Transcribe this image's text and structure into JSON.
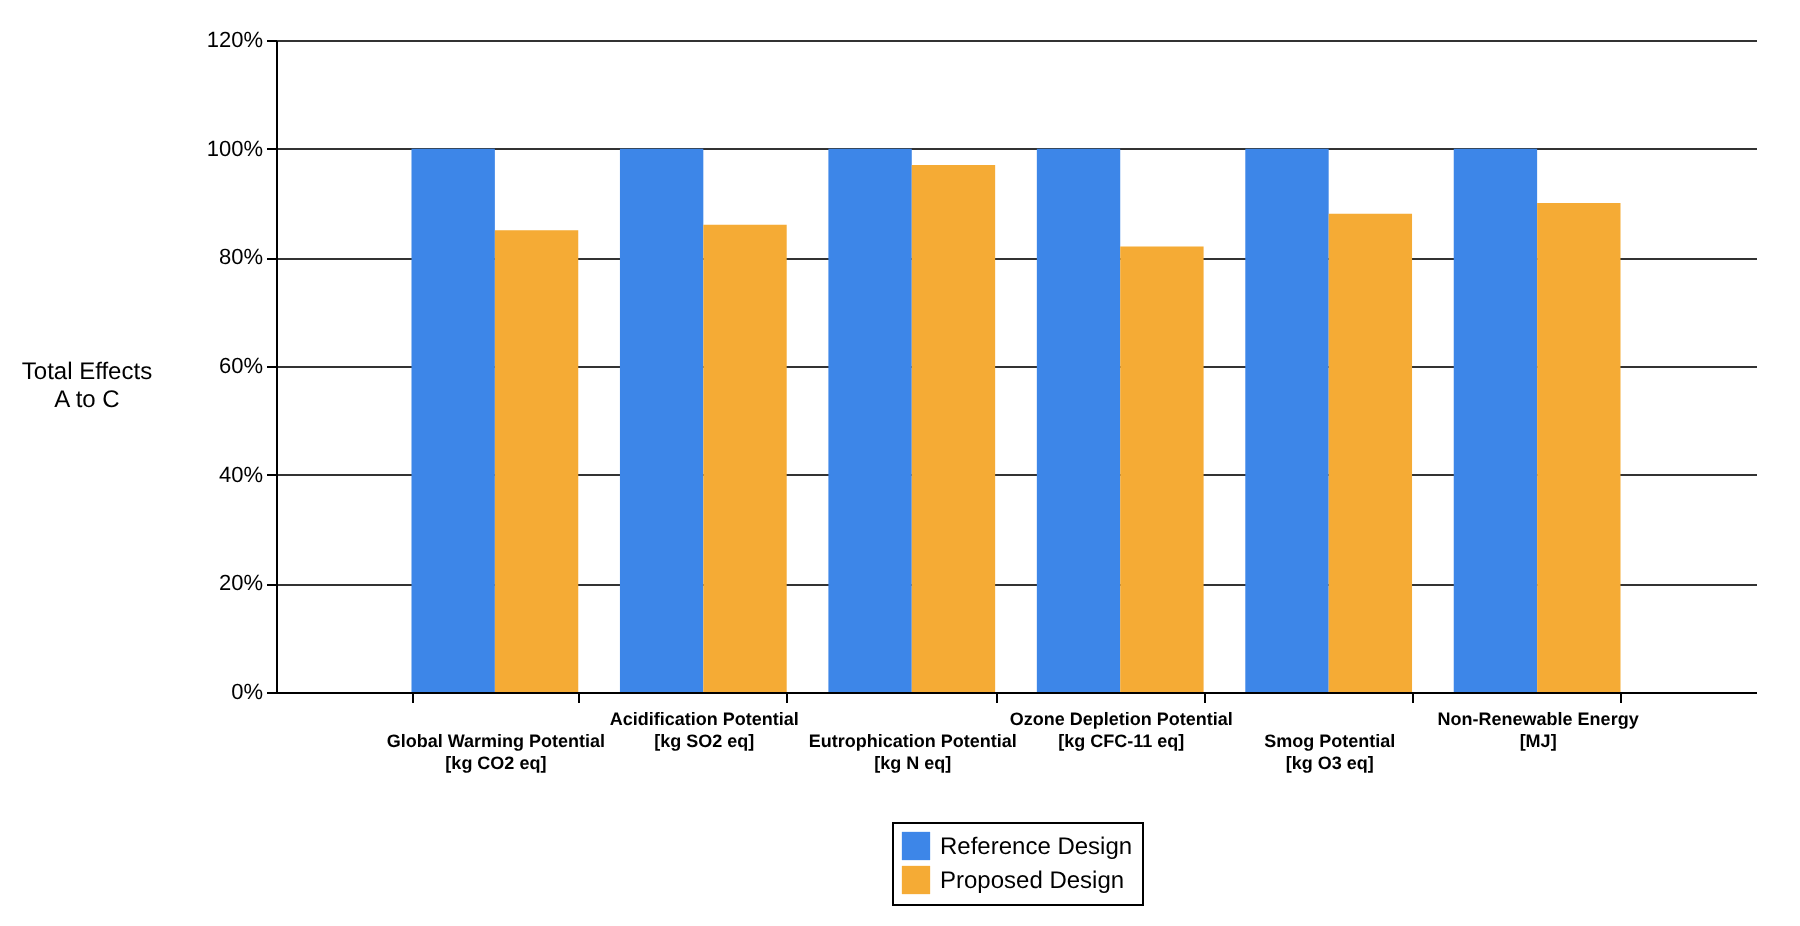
{
  "chart_data": {
    "type": "bar",
    "ylabel": "Total Effects\nA to C",
    "categories": [
      "Global Warming Potential\n[kg CO2 eq]",
      "Acidification Potential\n[kg SO2 eq]",
      "Eutrophication Potential\n[kg N eq]",
      "Ozone Depletion Potential\n[kg CFC-11 eq]",
      "Smog Potential\n[kg O3 eq]",
      "Non-Renewable Energy\n[MJ]"
    ],
    "series": [
      {
        "name": "Reference Design",
        "color": "#3d86e8",
        "values": [
          100,
          100,
          100,
          100,
          100,
          100
        ]
      },
      {
        "name": "Proposed Design",
        "color": "#f5ab35",
        "values": [
          85,
          86,
          97,
          82,
          88,
          90
        ]
      }
    ],
    "ylim": [
      0,
      120
    ],
    "yticks": [
      {
        "value": 0,
        "label": "0%"
      },
      {
        "value": 20,
        "label": "20%"
      },
      {
        "value": 40,
        "label": "40%"
      },
      {
        "value": 60,
        "label": "60%"
      },
      {
        "value": 80,
        "label": "80%"
      },
      {
        "value": 100,
        "label": "100%"
      },
      {
        "value": 120,
        "label": "120%"
      }
    ],
    "grid": "y",
    "legend": "bottom"
  }
}
